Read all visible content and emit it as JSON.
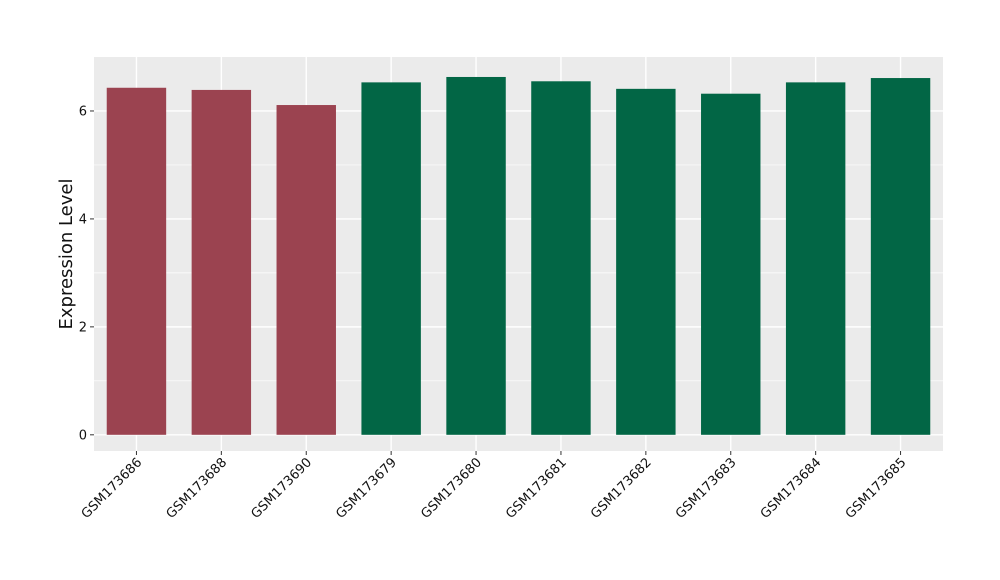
{
  "chart_data": {
    "type": "bar",
    "title": "",
    "xlabel": "",
    "ylabel": "Expression Level",
    "ylim": [
      -0.3,
      7.0
    ],
    "yticks": [
      0,
      2,
      4,
      6
    ],
    "grid": true,
    "legend": "none",
    "categories": [
      "GSM173686",
      "GSM173688",
      "GSM173690",
      "GSM173679",
      "GSM173680",
      "GSM173681",
      "GSM173682",
      "GSM173683",
      "GSM173684",
      "GSM173685"
    ],
    "values": [
      6.43,
      6.39,
      6.11,
      6.53,
      6.63,
      6.55,
      6.41,
      6.32,
      6.53,
      6.61
    ],
    "groups": [
      "red",
      "red",
      "red",
      "green",
      "green",
      "green",
      "green",
      "green",
      "green",
      "green"
    ]
  },
  "colors": {
    "red": "#9b4350",
    "green": "#026645",
    "panel": "#ebebeb",
    "grid": "#ffffff"
  }
}
